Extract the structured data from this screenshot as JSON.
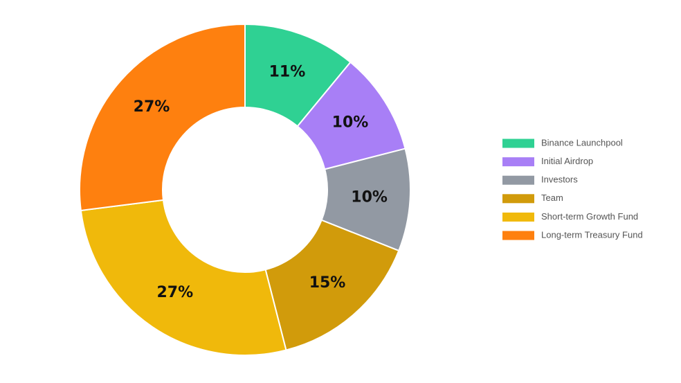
{
  "chart_data": {
    "type": "donut",
    "categories": [
      "Binance Launchpool",
      "Initial Airdrop",
      "Investors",
      "Team",
      "Short-term Growth Fund",
      "Long-term Treasury Fund"
    ],
    "values": [
      11,
      10,
      10,
      15,
      27,
      27
    ],
    "value_labels": [
      "11%",
      "10%",
      "10%",
      "15%",
      "27%",
      "27%"
    ],
    "colors": [
      "#2fd193",
      "#a87ff6",
      "#9299a3",
      "#d19b0b",
      "#f0b90b",
      "#fe800f"
    ],
    "legend": "right"
  }
}
